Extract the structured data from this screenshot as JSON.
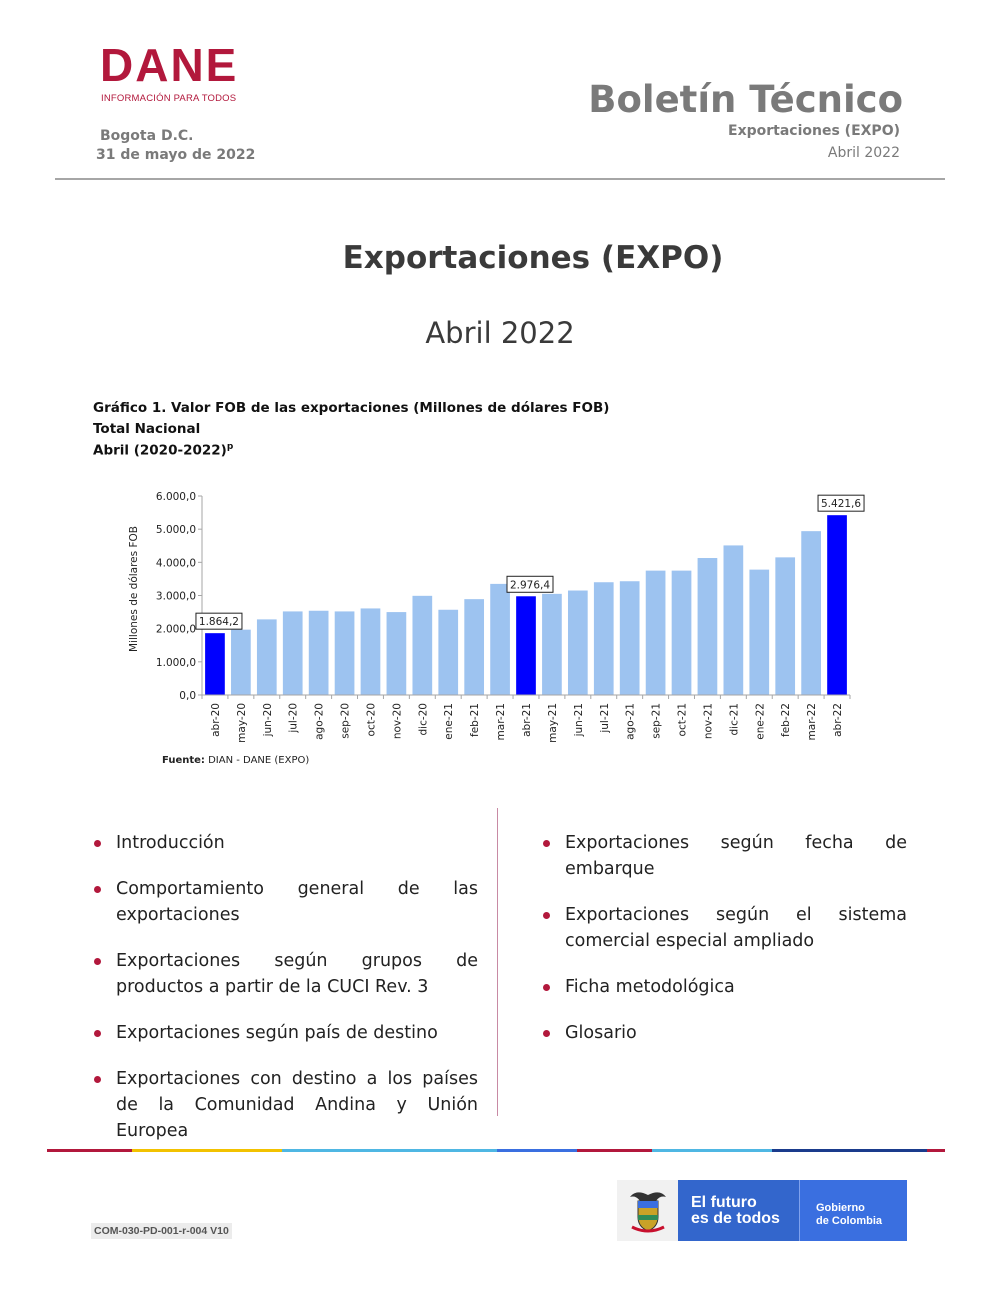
{
  "header": {
    "logo_text": "DANE",
    "logo_tagline": "INFORMACIÓN PARA TODOS",
    "city": "Bogota D.C.",
    "date": "31 de mayo de 2022",
    "bulletin_title": "Boletín Técnico",
    "bulletin_subject": "Exportaciones (EXPO)",
    "bulletin_period": "Abril 2022"
  },
  "main": {
    "title": "Exportaciones (EXPO)",
    "period": "Abril 2022"
  },
  "figure": {
    "title": "Gráfico 1. Valor FOB de las exportaciones (Millones de dólares FOB)",
    "scope": "Total Nacional",
    "range": "Abril (2020-2022)",
    "range_superscript": "p",
    "source_label": "Fuente:",
    "source_text": "DIAN - DANE (EXPO)"
  },
  "chart_data": {
    "type": "bar",
    "ylabel": "Millones de dólares FOB",
    "xlabel": "",
    "ylim": [
      0,
      6000
    ],
    "yticks": [
      "0,0",
      "1.000,0",
      "2.000,0",
      "3.000,0",
      "4.000,0",
      "5.000,0",
      "6.000,0"
    ],
    "ytick_values": [
      0,
      1000,
      2000,
      3000,
      4000,
      5000,
      6000
    ],
    "grid": false,
    "categories": [
      "abr-20",
      "may-20",
      "jun-20",
      "jul-20",
      "ago-20",
      "sep-20",
      "oct-20",
      "nov-20",
      "dic-20",
      "ene-21",
      "feb-21",
      "mar-21",
      "abr-21",
      "may-21",
      "jun-21",
      "jul-21",
      "ago-21",
      "sep-21",
      "oct-21",
      "nov-21",
      "dic-21",
      "ene-22",
      "feb-22",
      "mar-22",
      "abr-22"
    ],
    "values": [
      1864.2,
      1970,
      2280,
      2520,
      2540,
      2520,
      2610,
      2500,
      2990,
      2570,
      2890,
      3350,
      2976.4,
      3050,
      3150,
      3400,
      3430,
      3750,
      3750,
      4130,
      4510,
      3780,
      4150,
      4940,
      5421.6
    ],
    "highlighted": [
      "abr-20",
      "abr-21",
      "abr-22"
    ],
    "data_labels": [
      {
        "category": "abr-20",
        "text": "1.864,2"
      },
      {
        "category": "abr-21",
        "text": "2.976,4"
      },
      {
        "category": "abr-22",
        "text": "5.421,6"
      }
    ],
    "colors": {
      "highlight": "#0000ff",
      "normal": "#9dc3f0",
      "axis": "#a6a6a6"
    }
  },
  "toc": {
    "left": [
      "Introducción",
      "Comportamiento general de las exportaciones",
      "Exportaciones según grupos de productos a partir de la CUCI Rev. 3",
      "Exportaciones según país de destino",
      "Exportaciones con destino a los países de la Comunidad Andina y Unión Europea"
    ],
    "right": [
      "Exportaciones según fecha de embarque",
      "Exportaciones según el sistema comercial especial ampliado",
      "Ficha metodológica",
      "Glosario"
    ],
    "bullet_color": "#b2183c"
  },
  "footer": {
    "doc_code": "COM-030-PD-001-r-004 V10",
    "gov_motto_line1": "El futuro",
    "gov_motto_line2": "es de todos",
    "gov_name_line1": "Gobierno",
    "gov_name_line2": "de Colombia",
    "rule_colors": [
      "#b2183c",
      "#f2c200",
      "#4fb7e3",
      "#3a6fe0",
      "#b2183c",
      "#4fb7e3",
      "#1a3b8c",
      "#b2183c"
    ]
  }
}
